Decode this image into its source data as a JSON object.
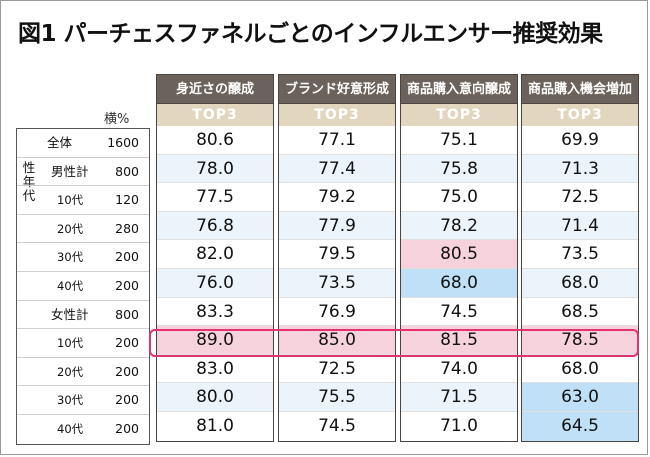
{
  "title": "図1 パーチェスファネルごとのインフルエンサー推奨効果",
  "sample_unit": "横%",
  "gender_label": "性年代",
  "columns": [
    {
      "header": "身近さの醸成",
      "sub": "TOP3"
    },
    {
      "header": "ブランド好意形成",
      "sub": "TOP3"
    },
    {
      "header": "商品購入意向醸成",
      "sub": "TOP3"
    },
    {
      "header": "商品購入機会増加",
      "sub": "TOP3"
    }
  ],
  "rows": [
    {
      "label": "全体",
      "n": "1600",
      "values": [
        "80.6",
        "77.1",
        "75.1",
        "69.9"
      ],
      "colors": [
        "",
        "",
        "",
        ""
      ]
    },
    {
      "label": "男性計",
      "n": "800",
      "values": [
        "78.0",
        "77.4",
        "75.8",
        "71.3"
      ],
      "colors": [
        "",
        "",
        "",
        ""
      ]
    },
    {
      "label": "10代",
      "n": "120",
      "values": [
        "77.5",
        "79.2",
        "75.0",
        "72.5"
      ],
      "colors": [
        "",
        "",
        "",
        ""
      ]
    },
    {
      "label": "20代",
      "n": "280",
      "values": [
        "76.8",
        "77.9",
        "78.2",
        "71.4"
      ],
      "colors": [
        "",
        "",
        "",
        ""
      ]
    },
    {
      "label": "30代",
      "n": "200",
      "values": [
        "82.0",
        "79.5",
        "80.5",
        "73.5"
      ],
      "colors": [
        "",
        "",
        "#f6d3dc",
        ""
      ]
    },
    {
      "label": "40代",
      "n": "200",
      "values": [
        "76.0",
        "73.5",
        "68.0",
        "68.0"
      ],
      "colors": [
        "",
        "",
        "#bfe0f7",
        ""
      ]
    },
    {
      "label": "女性計",
      "n": "800",
      "values": [
        "83.3",
        "76.9",
        "74.5",
        "68.5"
      ],
      "colors": [
        "",
        "",
        "",
        ""
      ]
    },
    {
      "label": "10代",
      "n": "200",
      "values": [
        "89.0",
        "85.0",
        "81.5",
        "78.5"
      ],
      "colors": [
        "#f6d3dc",
        "#f6d3dc",
        "#f6d3dc",
        "#f6d3dc"
      ]
    },
    {
      "label": "20代",
      "n": "200",
      "values": [
        "83.0",
        "72.5",
        "74.0",
        "68.0"
      ],
      "colors": [
        "",
        "",
        "",
        ""
      ]
    },
    {
      "label": "30代",
      "n": "200",
      "values": [
        "80.0",
        "75.5",
        "71.5",
        "63.0"
      ],
      "colors": [
        "",
        "",
        "",
        "#bfe0f7"
      ]
    },
    {
      "label": "40代",
      "n": "200",
      "values": [
        "81.0",
        "74.5",
        "71.0",
        "64.5"
      ],
      "colors": [
        "",
        "",
        "",
        "#bfe0f7"
      ]
    }
  ]
}
